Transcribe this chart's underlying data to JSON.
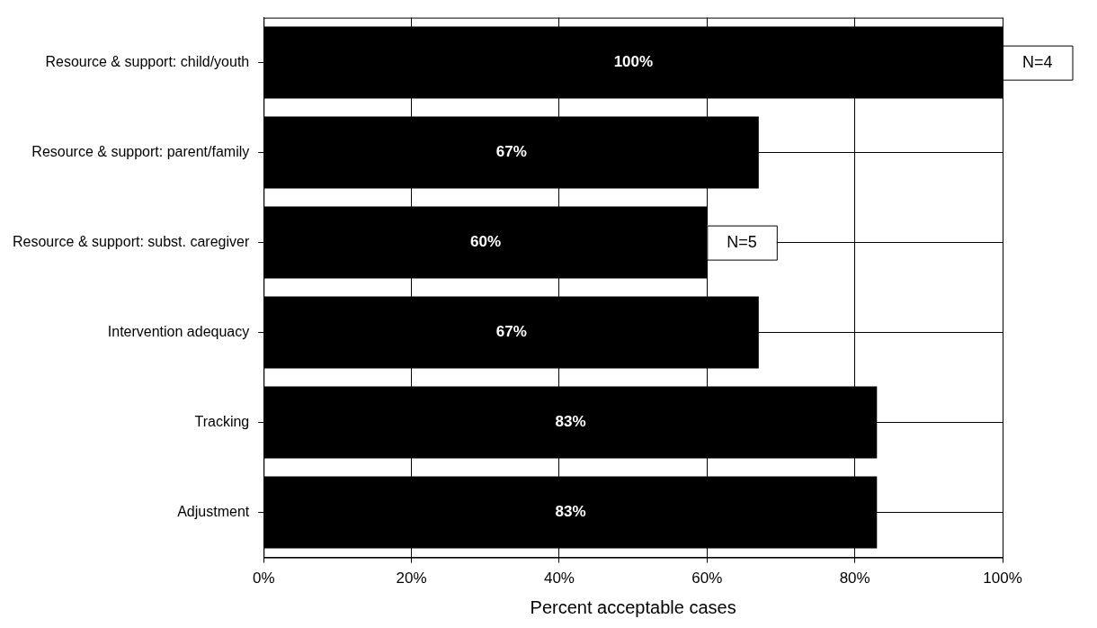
{
  "chart_data": {
    "type": "bar",
    "orientation": "horizontal",
    "xlabel": "Percent acceptable cases",
    "categories": [
      "Resource & support: child/youth",
      "Resource & support: parent/family",
      "Resource & support: subst. caregiver",
      "Intervention adequacy",
      "Tracking",
      "Adjustment"
    ],
    "values": [
      100,
      67,
      60,
      67,
      83,
      83
    ],
    "value_labels": [
      "100%",
      "67%",
      "60%",
      "67%",
      "83%",
      "83%"
    ],
    "color": "#000000",
    "xlim": [
      0,
      100
    ],
    "xticks": [
      {
        "value": 0,
        "label": "0%"
      },
      {
        "value": 20,
        "label": "20%"
      },
      {
        "value": 40,
        "label": "40%"
      },
      {
        "value": 60,
        "label": "60%"
      },
      {
        "value": 80,
        "label": "80%"
      },
      {
        "value": 100,
        "label": "100%"
      }
    ],
    "grid": true,
    "annotations": [
      {
        "text": "N=4",
        "x": 100,
        "y": "Resource & support: child/youth"
      },
      {
        "text": "N=5",
        "x": 60,
        "y": "Resource & support: subst. caregiver"
      }
    ]
  }
}
